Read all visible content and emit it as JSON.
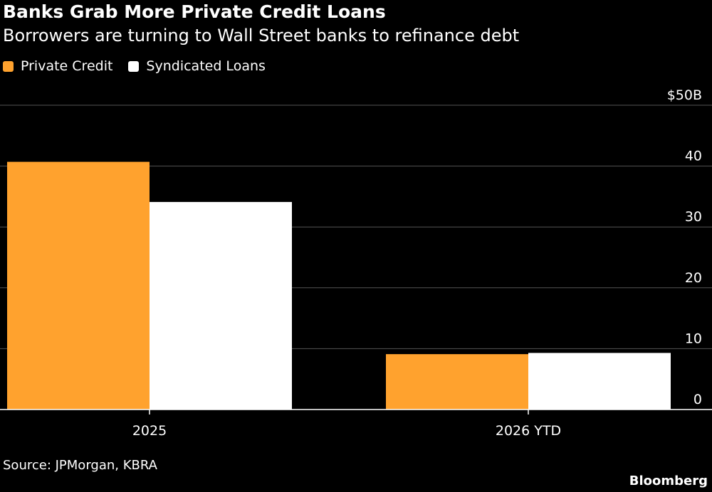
{
  "title": "Banks Grab More Private Credit Loans",
  "subtitle": "Borrowers are turning to Wall Street banks to refinance debt",
  "legend": [
    {
      "label": "Private Credit",
      "color": "#FFA22E"
    },
    {
      "label": "Syndicated Loans",
      "color": "#FFFFFF"
    }
  ],
  "source": "Source: JPMorgan, KBRA",
  "brand": "Bloomberg",
  "colors": {
    "background": "#000000",
    "gridline": "#555555",
    "axis": "#FFFFFF",
    "text": "#FFFFFF"
  },
  "chart_data": {
    "type": "bar",
    "categories": [
      "2025",
      "2026 YTD"
    ],
    "series": [
      {
        "name": "Private Credit",
        "values": [
          40.7,
          9.1
        ],
        "color": "#FFA22E"
      },
      {
        "name": "Syndicated Loans",
        "values": [
          34.1,
          9.3
        ],
        "color": "#FFFFFF"
      }
    ],
    "ylim": [
      0,
      50
    ],
    "yticks": [
      {
        "value": 0,
        "label": "0"
      },
      {
        "value": 10,
        "label": "10"
      },
      {
        "value": 20,
        "label": "20"
      },
      {
        "value": 30,
        "label": "30"
      },
      {
        "value": 40,
        "label": "40"
      },
      {
        "value": 50,
        "label": "$50B"
      }
    ],
    "y_axis_side": "right",
    "grid": true,
    "legend_position": "top-left"
  }
}
